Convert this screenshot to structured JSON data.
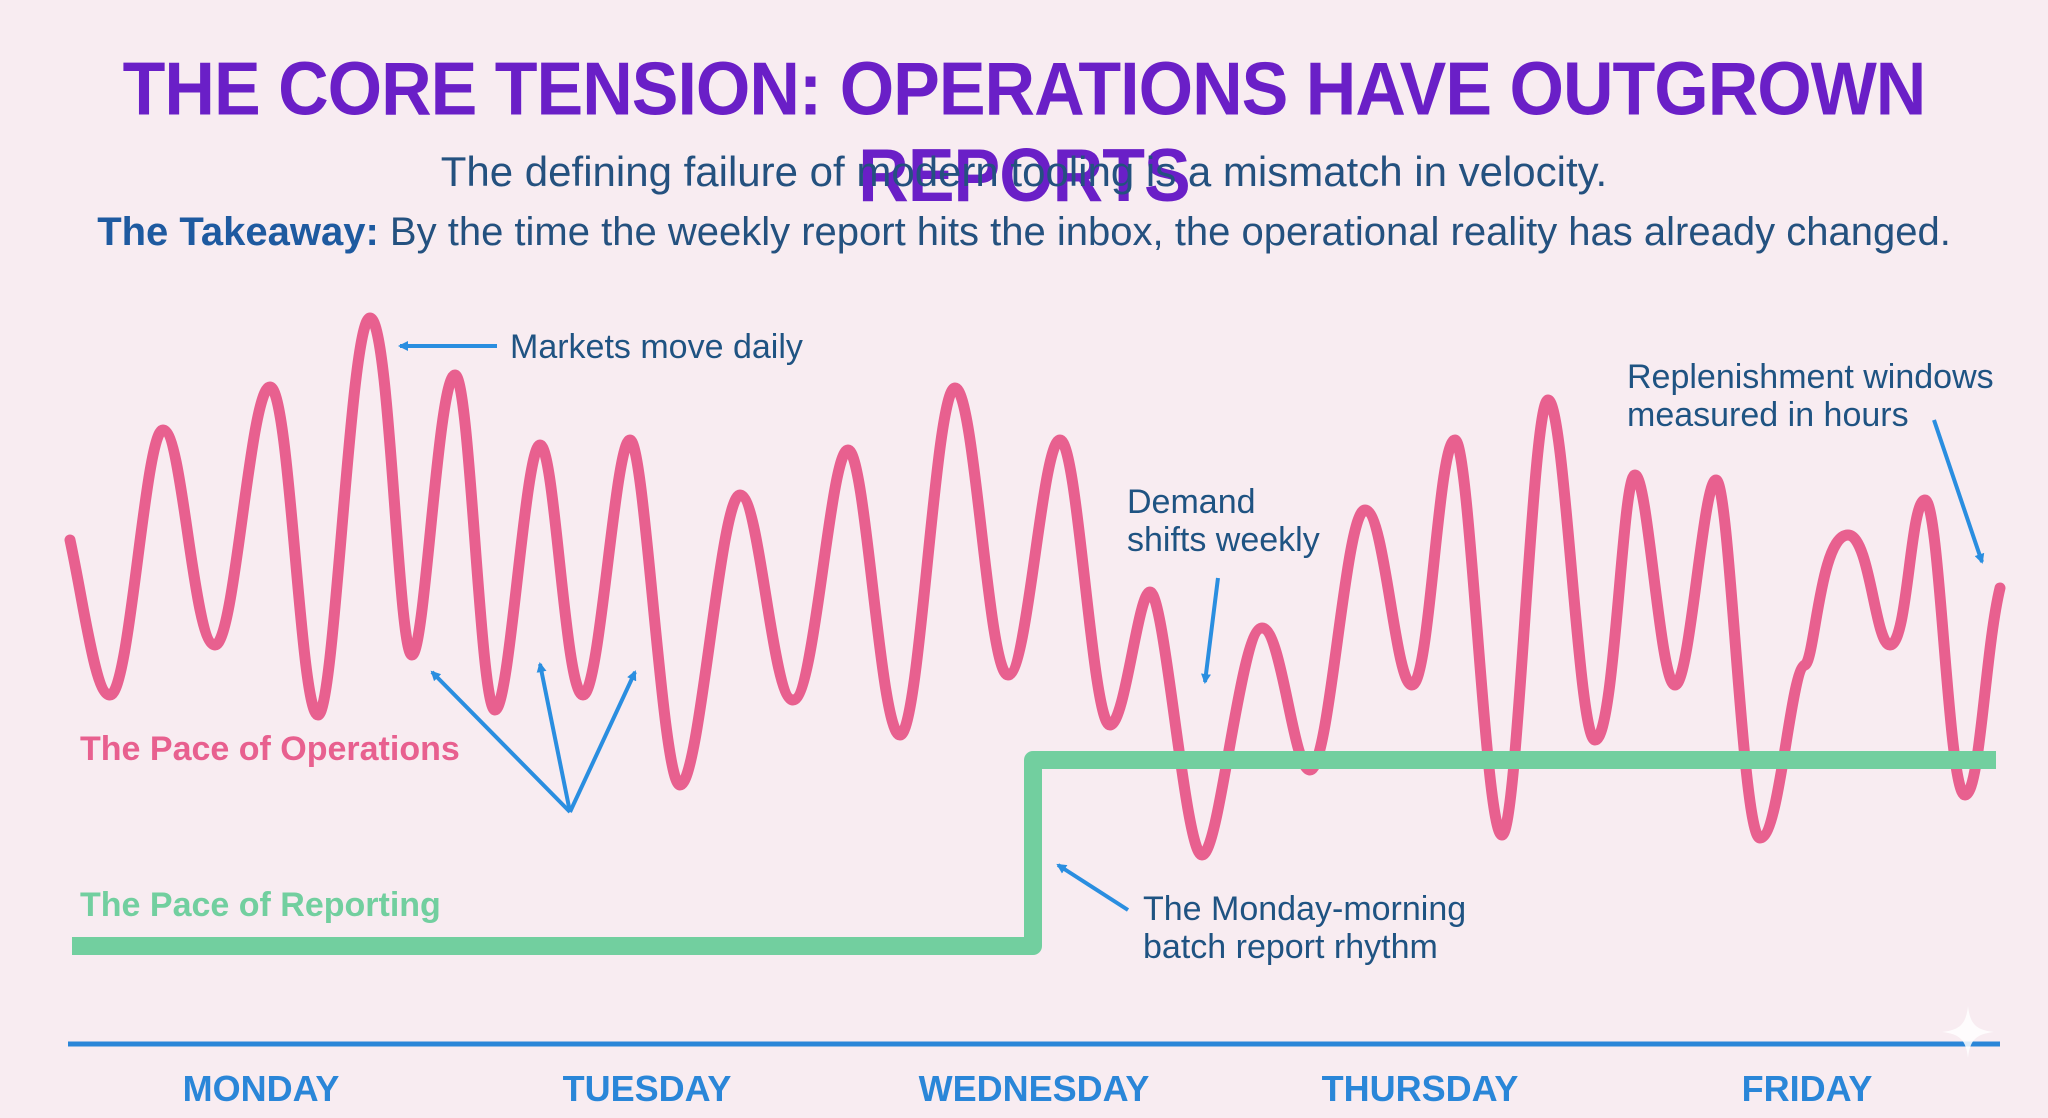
{
  "header": {
    "title": "THE CORE TENSION: OPERATIONS HAVE OUTGROWN REPORTS",
    "subtitle": "The defining failure of modern tooling is a mismatch in velocity.",
    "takeaway_label": "The Takeaway:",
    "takeaway_text": " By the time the weekly report hits the inbox, the operational reality has already changed."
  },
  "series": {
    "operations": {
      "label": "The Pace of Operations",
      "color": "#e8608f"
    },
    "reporting": {
      "label": "The Pace of Reporting",
      "color": "#72cf9f"
    }
  },
  "annotations": {
    "markets": "Markets move daily",
    "demand_line1": "Demand",
    "demand_line2": "shifts weekly",
    "replenish_line1": "Replenishment windows",
    "replenish_line2": "measured in hours",
    "batch_line1": "The Monday-morning",
    "batch_line2": "batch report rhythm"
  },
  "days": [
    "MONDAY",
    "TUESDAY",
    "WEDNESDAY",
    "THURSDAY",
    "FRIDAY"
  ],
  "colors": {
    "title": "#6a1fc7",
    "text": "#24517f",
    "arrow": "#2a8ee0",
    "axis": "#2a86d8",
    "background": "#f8ecf1"
  }
}
